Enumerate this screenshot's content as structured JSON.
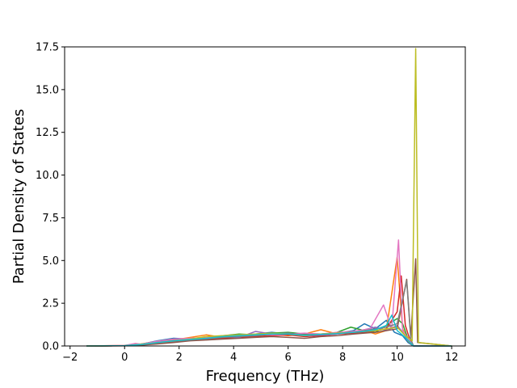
{
  "chart_data": {
    "type": "line",
    "title": "",
    "xlabel": "Frequency (THz)",
    "ylabel": "Partial Density of States",
    "xlim": [
      -2.2,
      12.5
    ],
    "ylim": [
      0,
      17.5
    ],
    "x_ticks": [
      -2,
      0,
      2,
      4,
      6,
      8,
      10,
      12
    ],
    "y_ticks": [
      0.0,
      2.5,
      5.0,
      7.5,
      10.0,
      12.5,
      15.0,
      17.5
    ],
    "x_tick_labels": [
      "−2",
      "0",
      "2",
      "4",
      "6",
      "8",
      "10",
      "12"
    ],
    "y_tick_labels": [
      "0.0",
      "2.5",
      "5.0",
      "7.5",
      "10.0",
      "12.5",
      "15.0",
      "17.5"
    ],
    "grid": false,
    "legend": "none",
    "colors": [
      "#1f77b4",
      "#ff7f0e",
      "#2ca02c",
      "#d62728",
      "#9467bd",
      "#8c564b",
      "#e377c2",
      "#7f7f7f",
      "#bcbd22",
      "#17becf"
    ],
    "series": [
      {
        "color": "#1f77b4",
        "points": [
          [
            -1.4,
            0
          ],
          [
            0,
            0.02
          ],
          [
            0.6,
            0.1
          ],
          [
            1.2,
            0.3
          ],
          [
            1.8,
            0.45
          ],
          [
            2.4,
            0.4
          ],
          [
            3.0,
            0.5
          ],
          [
            3.6,
            0.55
          ],
          [
            4.2,
            0.6
          ],
          [
            4.8,
            0.7
          ],
          [
            5.4,
            0.8
          ],
          [
            6.0,
            0.7
          ],
          [
            6.6,
            0.6
          ],
          [
            7.2,
            0.7
          ],
          [
            7.8,
            0.75
          ],
          [
            8.4,
            0.9
          ],
          [
            8.8,
            1.3
          ],
          [
            9.2,
            1.0
          ],
          [
            9.6,
            1.5
          ],
          [
            9.9,
            0.8
          ],
          [
            10.2,
            0.6
          ],
          [
            10.4,
            0.2
          ],
          [
            10.6,
            0
          ],
          [
            12,
            0
          ]
        ]
      },
      {
        "color": "#ff7f0e",
        "points": [
          [
            -1.4,
            0
          ],
          [
            0,
            0.03
          ],
          [
            0.6,
            0.12
          ],
          [
            1.2,
            0.25
          ],
          [
            1.8,
            0.35
          ],
          [
            2.4,
            0.5
          ],
          [
            3.0,
            0.65
          ],
          [
            3.6,
            0.5
          ],
          [
            4.2,
            0.55
          ],
          [
            4.8,
            0.6
          ],
          [
            5.4,
            0.7
          ],
          [
            6.0,
            0.6
          ],
          [
            6.6,
            0.7
          ],
          [
            7.2,
            0.95
          ],
          [
            7.8,
            0.7
          ],
          [
            8.4,
            0.8
          ],
          [
            8.8,
            0.9
          ],
          [
            9.2,
            0.7
          ],
          [
            9.6,
            0.9
          ],
          [
            10.0,
            5.2
          ],
          [
            10.2,
            1.0
          ],
          [
            10.4,
            0.3
          ],
          [
            10.6,
            0
          ],
          [
            12,
            0
          ]
        ]
      },
      {
        "color": "#2ca02c",
        "points": [
          [
            -1.4,
            0
          ],
          [
            0,
            0.02
          ],
          [
            0.6,
            0.08
          ],
          [
            1.2,
            0.2
          ],
          [
            1.8,
            0.3
          ],
          [
            2.4,
            0.4
          ],
          [
            3.0,
            0.45
          ],
          [
            3.6,
            0.6
          ],
          [
            4.2,
            0.7
          ],
          [
            4.8,
            0.65
          ],
          [
            5.4,
            0.75
          ],
          [
            6.0,
            0.8
          ],
          [
            6.6,
            0.7
          ],
          [
            7.2,
            0.6
          ],
          [
            7.8,
            0.8
          ],
          [
            8.3,
            1.1
          ],
          [
            8.8,
            0.9
          ],
          [
            9.2,
            0.8
          ],
          [
            9.6,
            1.2
          ],
          [
            10.0,
            1.6
          ],
          [
            10.2,
            1.3
          ],
          [
            10.4,
            0.4
          ],
          [
            10.6,
            0
          ],
          [
            12,
            0
          ]
        ]
      },
      {
        "color": "#d62728",
        "points": [
          [
            -1.4,
            0
          ],
          [
            0,
            0.01
          ],
          [
            0.6,
            0.06
          ],
          [
            1.2,
            0.15
          ],
          [
            1.8,
            0.25
          ],
          [
            2.4,
            0.35
          ],
          [
            3.0,
            0.4
          ],
          [
            3.6,
            0.45
          ],
          [
            4.2,
            0.5
          ],
          [
            4.8,
            0.55
          ],
          [
            5.4,
            0.6
          ],
          [
            6.0,
            0.65
          ],
          [
            6.6,
            0.55
          ],
          [
            7.2,
            0.6
          ],
          [
            7.8,
            0.7
          ],
          [
            8.4,
            0.75
          ],
          [
            8.8,
            0.8
          ],
          [
            9.2,
            0.9
          ],
          [
            9.6,
            1.0
          ],
          [
            10.0,
            2.0
          ],
          [
            10.15,
            4.1
          ],
          [
            10.3,
            1.2
          ],
          [
            10.5,
            0.2
          ],
          [
            10.6,
            0
          ],
          [
            12,
            0
          ]
        ]
      },
      {
        "color": "#9467bd",
        "points": [
          [
            -1.4,
            0
          ],
          [
            0,
            0.02
          ],
          [
            0.6,
            0.09
          ],
          [
            1.2,
            0.22
          ],
          [
            1.8,
            0.32
          ],
          [
            2.4,
            0.38
          ],
          [
            3.0,
            0.5
          ],
          [
            3.6,
            0.55
          ],
          [
            4.2,
            0.5
          ],
          [
            4.8,
            0.85
          ],
          [
            5.4,
            0.7
          ],
          [
            6.0,
            0.75
          ],
          [
            6.6,
            0.6
          ],
          [
            7.2,
            0.65
          ],
          [
            7.8,
            0.7
          ],
          [
            8.4,
            0.85
          ],
          [
            8.8,
            0.95
          ],
          [
            9.2,
            1.1
          ],
          [
            9.6,
            0.9
          ],
          [
            10.0,
            1.2
          ],
          [
            10.3,
            0.6
          ],
          [
            10.6,
            0
          ],
          [
            12,
            0
          ]
        ]
      },
      {
        "color": "#8c564b",
        "points": [
          [
            -1.4,
            0
          ],
          [
            0,
            0.01
          ],
          [
            0.6,
            0.05
          ],
          [
            1.2,
            0.12
          ],
          [
            1.8,
            0.2
          ],
          [
            2.4,
            0.3
          ],
          [
            3.0,
            0.35
          ],
          [
            3.6,
            0.4
          ],
          [
            4.2,
            0.45
          ],
          [
            4.8,
            0.5
          ],
          [
            5.4,
            0.55
          ],
          [
            6.0,
            0.5
          ],
          [
            6.6,
            0.45
          ],
          [
            7.2,
            0.55
          ],
          [
            7.8,
            0.6
          ],
          [
            8.4,
            0.7
          ],
          [
            8.8,
            0.75
          ],
          [
            9.2,
            0.8
          ],
          [
            9.6,
            0.9
          ],
          [
            10.0,
            1.0
          ],
          [
            10.35,
            3.9
          ],
          [
            10.5,
            0.5
          ],
          [
            10.68,
            5.1
          ],
          [
            10.75,
            0.2
          ],
          [
            12,
            0
          ]
        ]
      },
      {
        "color": "#e377c2",
        "points": [
          [
            -1.4,
            0
          ],
          [
            0,
            0.03
          ],
          [
            0.4,
            0.15
          ],
          [
            0.6,
            0.1
          ],
          [
            1.2,
            0.28
          ],
          [
            1.8,
            0.4
          ],
          [
            2.4,
            0.45
          ],
          [
            3.0,
            0.5
          ],
          [
            3.6,
            0.6
          ],
          [
            4.2,
            0.65
          ],
          [
            4.8,
            0.7
          ],
          [
            5.4,
            0.65
          ],
          [
            6.0,
            0.7
          ],
          [
            6.6,
            0.75
          ],
          [
            7.2,
            0.7
          ],
          [
            7.8,
            0.8
          ],
          [
            8.4,
            0.85
          ],
          [
            9.0,
            1.0
          ],
          [
            9.5,
            2.4
          ],
          [
            9.8,
            1.0
          ],
          [
            10.05,
            6.2
          ],
          [
            10.2,
            0.9
          ],
          [
            10.5,
            0.2
          ],
          [
            10.6,
            0
          ],
          [
            12,
            0
          ]
        ]
      },
      {
        "color": "#7f7f7f",
        "points": [
          [
            -1.4,
            0
          ],
          [
            0,
            0.02
          ],
          [
            0.6,
            0.07
          ],
          [
            1.2,
            0.18
          ],
          [
            1.8,
            0.28
          ],
          [
            2.4,
            0.36
          ],
          [
            3.0,
            0.42
          ],
          [
            3.6,
            0.5
          ],
          [
            4.2,
            0.55
          ],
          [
            4.8,
            0.6
          ],
          [
            5.4,
            0.7
          ],
          [
            6.0,
            0.75
          ],
          [
            6.6,
            0.65
          ],
          [
            7.2,
            0.7
          ],
          [
            7.8,
            0.75
          ],
          [
            8.4,
            0.8
          ],
          [
            8.8,
            0.9
          ],
          [
            9.2,
            1.0
          ],
          [
            9.6,
            1.1
          ],
          [
            10.0,
            1.3
          ],
          [
            10.35,
            3.8
          ],
          [
            10.5,
            0.4
          ],
          [
            10.6,
            0
          ],
          [
            12,
            0
          ]
        ]
      },
      {
        "color": "#bcbd22",
        "points": [
          [
            -1.4,
            0
          ],
          [
            0,
            0.02
          ],
          [
            0.6,
            0.1
          ],
          [
            1.2,
            0.2
          ],
          [
            1.8,
            0.3
          ],
          [
            2.4,
            0.4
          ],
          [
            3.0,
            0.55
          ],
          [
            3.6,
            0.6
          ],
          [
            4.2,
            0.65
          ],
          [
            4.8,
            0.7
          ],
          [
            5.4,
            0.75
          ],
          [
            6.0,
            0.7
          ],
          [
            6.6,
            0.6
          ],
          [
            7.2,
            0.7
          ],
          [
            7.8,
            0.75
          ],
          [
            8.4,
            0.8
          ],
          [
            8.8,
            0.85
          ],
          [
            9.2,
            0.9
          ],
          [
            9.6,
            1.0
          ],
          [
            10.0,
            1.1
          ],
          [
            10.3,
            0.6
          ],
          [
            10.55,
            0.3
          ],
          [
            10.68,
            17.4
          ],
          [
            10.78,
            0.2
          ],
          [
            12,
            0
          ]
        ]
      },
      {
        "color": "#17becf",
        "points": [
          [
            -1.4,
            0
          ],
          [
            0,
            0.02
          ],
          [
            0.6,
            0.09
          ],
          [
            1.2,
            0.2
          ],
          [
            1.8,
            0.3
          ],
          [
            2.4,
            0.38
          ],
          [
            3.0,
            0.45
          ],
          [
            3.6,
            0.55
          ],
          [
            4.2,
            0.6
          ],
          [
            4.8,
            0.65
          ],
          [
            5.4,
            0.7
          ],
          [
            6.0,
            0.7
          ],
          [
            6.6,
            0.62
          ],
          [
            7.2,
            0.68
          ],
          [
            7.8,
            0.72
          ],
          [
            8.4,
            0.8
          ],
          [
            8.8,
            0.85
          ],
          [
            9.2,
            0.95
          ],
          [
            9.6,
            1.2
          ],
          [
            9.8,
            1.8
          ],
          [
            10.0,
            0.9
          ],
          [
            10.3,
            0.5
          ],
          [
            10.6,
            0
          ],
          [
            12,
            0
          ]
        ]
      }
    ]
  }
}
